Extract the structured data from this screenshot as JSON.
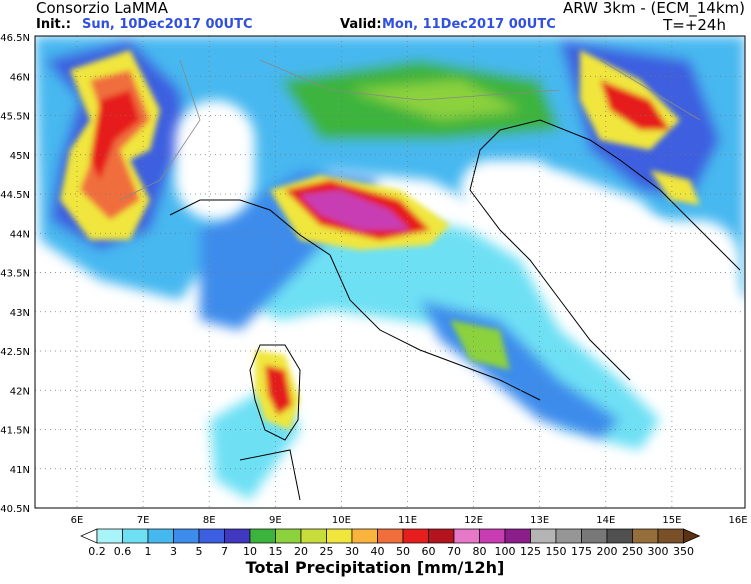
{
  "header": {
    "title": "Consorzio LaMMA",
    "init_label": "Init.:",
    "init_value": "Sun, 10Dec2017 00UTC",
    "model": "ARW 3km - (ECM_14km)",
    "valid_label": "Valid:",
    "valid_value": "Mon, 11Dec2017 00UTC",
    "lead": "T=+24h"
  },
  "map": {
    "lat_labels": [
      "46.5N",
      "46N",
      "45.5N",
      "45N",
      "44.5N",
      "44N",
      "43.5N",
      "43N",
      "42.5N",
      "42N",
      "41.5N",
      "41N",
      "40.5N"
    ],
    "lon_labels": [
      "6E",
      "7E",
      "8E",
      "9E",
      "10E",
      "11E",
      "12E",
      "13E",
      "14E",
      "15E",
      "16E"
    ]
  },
  "colorbar": {
    "title": "Total Precipitation [mm/12h]",
    "labels": [
      "0.2",
      "0.6",
      "1",
      "3",
      "5",
      "7",
      "10",
      "15",
      "20",
      "25",
      "30",
      "40",
      "50",
      "60",
      "70",
      "80",
      "100",
      "125",
      "150",
      "175",
      "200",
      "250",
      "300",
      "350"
    ],
    "colors": [
      "#ffffff",
      "#a8f4f8",
      "#6ee0f4",
      "#46b8f0",
      "#3c8cec",
      "#3c5ee0",
      "#4038c0",
      "#3cb43c",
      "#8cd23c",
      "#c8dc3c",
      "#f0e63c",
      "#f8b43c",
      "#f06e3c",
      "#e61e1e",
      "#b4141e",
      "#e678c8",
      "#c83cb4",
      "#8c1e8c",
      "#b4b4b4",
      "#969696",
      "#787878",
      "#505050",
      "#966e3c",
      "#7a5028",
      "#5a3214"
    ]
  }
}
